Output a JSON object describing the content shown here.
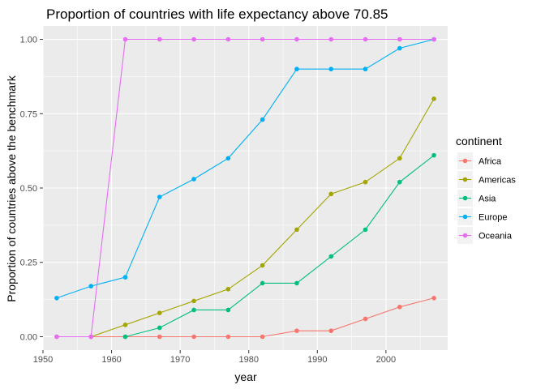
{
  "chart_data": {
    "type": "line",
    "title": "Proportion of countries with life expectancy above 70.85",
    "xlabel": "year",
    "ylabel": "Proportion of countries above the benchmark",
    "xlim": [
      1950,
      2009
    ],
    "ylim": [
      -0.045,
      1.045
    ],
    "x_ticks": [
      1950,
      1960,
      1970,
      1980,
      1990,
      2000
    ],
    "x_tick_labels": [
      "1950",
      "1960",
      "1970",
      "1980",
      "1990",
      "2000"
    ],
    "y_ticks": [
      0,
      0.25,
      0.5,
      0.75,
      1.0
    ],
    "y_tick_labels": [
      "0.00",
      "0.25",
      "0.50",
      "0.75",
      "1.00"
    ],
    "grid": true,
    "legend": {
      "title": "continent",
      "position": "right"
    },
    "x": [
      1952,
      1957,
      1962,
      1967,
      1972,
      1977,
      1982,
      1987,
      1992,
      1997,
      2002,
      2007
    ],
    "series": [
      {
        "name": "Africa",
        "color": "#F8766D",
        "values": [
          0,
          0,
          0,
          0,
          0,
          0,
          0,
          0.02,
          0.02,
          0.06,
          0.1,
          0.13
        ]
      },
      {
        "name": "Americas",
        "color": "#A3A500",
        "values": [
          null,
          0,
          0.04,
          0.08,
          0.12,
          0.16,
          0.24,
          0.36,
          0.48,
          0.52,
          0.6,
          0.8
        ]
      },
      {
        "name": "Asia",
        "color": "#00BF7D",
        "values": [
          null,
          null,
          0,
          0.03,
          0.09,
          0.09,
          0.18,
          0.18,
          0.27,
          0.36,
          0.52,
          0.61
        ]
      },
      {
        "name": "Europe",
        "color": "#00B0F6",
        "values": [
          0.13,
          0.17,
          0.2,
          0.47,
          0.53,
          0.6,
          0.73,
          0.9,
          0.9,
          0.9,
          0.97,
          1.0
        ]
      },
      {
        "name": "Oceania",
        "color": "#E76BF3",
        "values": [
          0,
          0,
          1.0,
          1.0,
          1.0,
          1.0,
          1.0,
          1.0,
          1.0,
          1.0,
          1.0,
          1.0
        ]
      }
    ]
  }
}
